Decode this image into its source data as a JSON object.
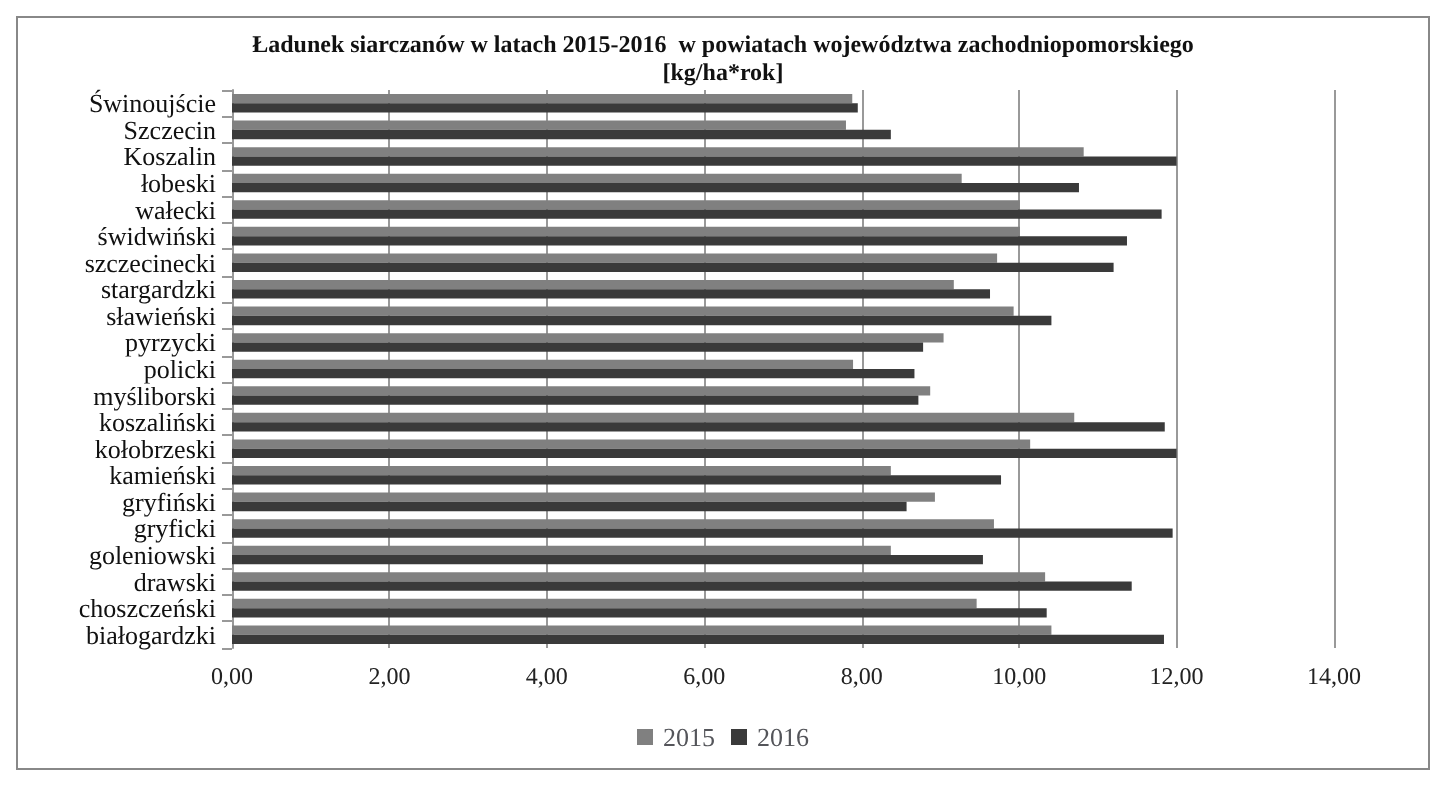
{
  "chart_data": {
    "type": "bar",
    "orientation": "horizontal",
    "title": "Ładunek siarczanów w latach 2015-2016  w powiatach województwa zachodniopomorskiego",
    "subtitle": "[kg/ha*rok]",
    "categories": [
      "Świnoujście",
      "Szczecin",
      "Koszalin",
      "łobeski",
      "wałecki",
      "świdwiński",
      "szczecinecki",
      "stargardzki",
      "sławieński",
      "pyrzycki",
      "policki",
      "myśliborski",
      "koszaliński",
      "kołobrzeski",
      "kamieński",
      "gryfiński",
      "gryficki",
      "goleniowski",
      "drawski",
      "choszczeński",
      "białogardzki"
    ],
    "series": [
      {
        "name": "2015",
        "color": "#808080",
        "values": [
          7.88,
          7.8,
          10.82,
          9.27,
          10.01,
          10.01,
          9.72,
          9.17,
          9.93,
          9.04,
          7.89,
          8.87,
          10.7,
          10.14,
          8.37,
          8.93,
          9.68,
          8.37,
          10.33,
          9.46,
          10.41
        ]
      },
      {
        "name": "2016",
        "color": "#3a3a3a",
        "values": [
          7.95,
          8.37,
          12.0,
          10.76,
          11.81,
          11.37,
          11.2,
          9.63,
          10.41,
          8.78,
          8.67,
          8.72,
          11.85,
          12.0,
          9.77,
          8.57,
          11.95,
          9.54,
          11.43,
          10.35,
          11.84
        ]
      }
    ],
    "xlim": [
      0,
      14
    ],
    "xticks": [
      {
        "value": 0,
        "label": "0,00"
      },
      {
        "value": 2,
        "label": "2,00"
      },
      {
        "value": 4,
        "label": "4,00"
      },
      {
        "value": 6,
        "label": "6,00"
      },
      {
        "value": 8,
        "label": "8,00"
      },
      {
        "value": 10,
        "label": "10,00"
      },
      {
        "value": 12,
        "label": "12,00"
      },
      {
        "value": 14,
        "label": "14,00"
      }
    ],
    "grid": "x",
    "legend": "bottom"
  }
}
